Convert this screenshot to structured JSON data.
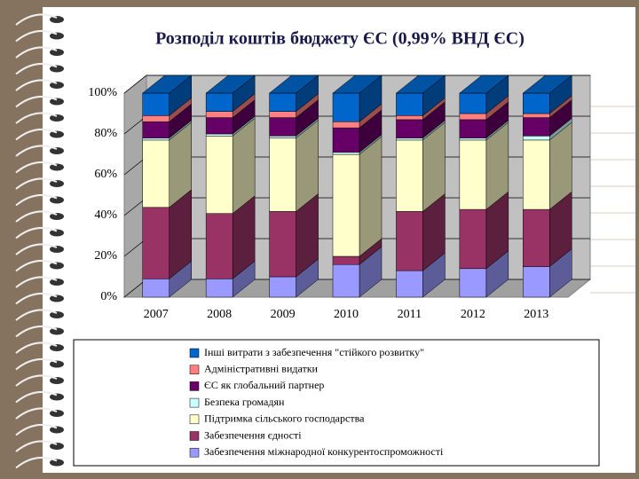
{
  "chart_data": {
    "type": "stacked-bar-3d",
    "title": "Розподіл коштів бюджету ЄС (0,99% ВНД ЄС)",
    "categories": [
      "2007",
      "2008",
      "2009",
      "2010",
      "2011",
      "2012",
      "2013"
    ],
    "series": [
      {
        "name": "Забезпечення міжнародної конкурентоспроможності",
        "color": "#9999ff",
        "values": [
          9,
          9,
          10,
          16,
          13,
          14,
          15
        ]
      },
      {
        "name": "Забезпечення єдності",
        "color": "#993366",
        "values": [
          35,
          32,
          32,
          4,
          29,
          29,
          28
        ]
      },
      {
        "name": "Підтримка сільського господарства",
        "color": "#ffffcc",
        "values": [
          33,
          38,
          36,
          50,
          35,
          34,
          34
        ]
      },
      {
        "name": "Безпека громадян",
        "color": "#ccffff",
        "values": [
          1,
          1,
          1,
          1,
          1,
          1,
          2
        ]
      },
      {
        "name": "ЄС як глобальний партнер",
        "color": "#660066",
        "values": [
          8,
          8,
          9,
          12,
          9,
          9,
          9
        ]
      },
      {
        "name": "Адміністративні видатки",
        "color": "#ff8080",
        "values": [
          3,
          3,
          3,
          3,
          2,
          3,
          2
        ]
      },
      {
        "name": "Інші витрати з забезпечення \"стійкого розвитку\"",
        "color": "#0066cc",
        "values": [
          11,
          9,
          9,
          14,
          11,
          10,
          10
        ]
      }
    ],
    "ylim": [
      0,
      100
    ],
    "yticks": [
      {
        "value": 0,
        "label": "0%"
      },
      {
        "value": 20,
        "label": "20%"
      },
      {
        "value": 40,
        "label": "40%"
      },
      {
        "value": 60,
        "label": "60%"
      },
      {
        "value": 80,
        "label": "80%"
      },
      {
        "value": 100,
        "label": "100%"
      }
    ],
    "grid": true
  }
}
